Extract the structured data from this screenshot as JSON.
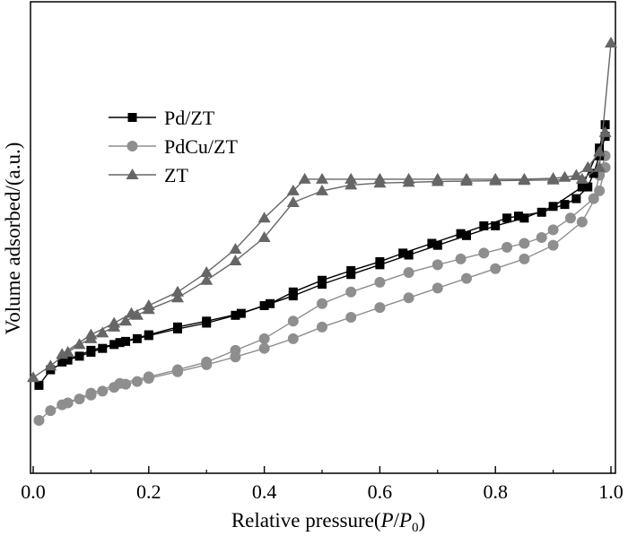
{
  "chart_data": {
    "type": "line",
    "xlabel_main": "Relative pressure(",
    "xlabel_P": "P",
    "xlabel_slash": "/",
    "xlabel_P0": "P",
    "xlabel_sub": "0",
    "xlabel_close": ")",
    "ylabel": "Volume adsorbed/(a.u.)",
    "xlim": [
      0.0,
      1.0
    ],
    "ylim": [
      0,
      100
    ],
    "x_ticks": [
      "0.0",
      "0.2",
      "0.4",
      "0.6",
      "0.8",
      "1.0"
    ],
    "y_ticks_labeled": false,
    "grid": false,
    "legend_position": "upper-left",
    "series": [
      {
        "name": "Pd/ZT",
        "marker": "square",
        "color": "#000000",
        "adsorption": [
          [
            0.01,
            12
          ],
          [
            0.03,
            16
          ],
          [
            0.06,
            18.5
          ],
          [
            0.08,
            19.5
          ],
          [
            0.1,
            20.5
          ],
          [
            0.12,
            21.5
          ],
          [
            0.14,
            22.5
          ],
          [
            0.16,
            23.3
          ],
          [
            0.18,
            24
          ],
          [
            0.2,
            24.8
          ],
          [
            0.25,
            26.5
          ],
          [
            0.3,
            28
          ],
          [
            0.35,
            30
          ],
          [
            0.4,
            32.5
          ],
          [
            0.45,
            35
          ],
          [
            0.5,
            38
          ],
          [
            0.55,
            40.5
          ],
          [
            0.6,
            43
          ],
          [
            0.65,
            45.5
          ],
          [
            0.7,
            48
          ],
          [
            0.75,
            50.5
          ],
          [
            0.8,
            53
          ],
          [
            0.85,
            55
          ],
          [
            0.9,
            58
          ],
          [
            0.95,
            63
          ],
          [
            0.98,
            73
          ],
          [
            0.99,
            79
          ]
        ],
        "desorption": [
          [
            0.99,
            76
          ],
          [
            0.98,
            71
          ],
          [
            0.97,
            66.5
          ],
          [
            0.96,
            63
          ],
          [
            0.94,
            60
          ],
          [
            0.92,
            58.5
          ],
          [
            0.88,
            56.5
          ],
          [
            0.84,
            55.5
          ],
          [
            0.82,
            55
          ],
          [
            0.78,
            53
          ],
          [
            0.74,
            51
          ],
          [
            0.69,
            48.5
          ],
          [
            0.64,
            46
          ],
          [
            0.6,
            43.8
          ],
          [
            0.55,
            41.5
          ],
          [
            0.5,
            39
          ],
          [
            0.45,
            36
          ],
          [
            0.41,
            33
          ],
          [
            0.36,
            30.5
          ],
          [
            0.3,
            28.5
          ],
          [
            0.25,
            27
          ],
          [
            0.2,
            25
          ],
          [
            0.15,
            23
          ],
          [
            0.1,
            21
          ],
          [
            0.05,
            18
          ]
        ]
      },
      {
        "name": "PdCu/ZT",
        "marker": "circle",
        "color": "#8e8e8e",
        "adsorption": [
          [
            0.01,
            3
          ],
          [
            0.03,
            5.5
          ],
          [
            0.06,
            7.5
          ],
          [
            0.08,
            8.5
          ],
          [
            0.1,
            9.5
          ],
          [
            0.12,
            10.5
          ],
          [
            0.14,
            11.5
          ],
          [
            0.16,
            12.3
          ],
          [
            0.18,
            13
          ],
          [
            0.2,
            13.8
          ],
          [
            0.25,
            15.5
          ],
          [
            0.3,
            17.3
          ],
          [
            0.35,
            19.3
          ],
          [
            0.4,
            21.5
          ],
          [
            0.45,
            24
          ],
          [
            0.5,
            27
          ],
          [
            0.55,
            29.5
          ],
          [
            0.6,
            32
          ],
          [
            0.65,
            34.5
          ],
          [
            0.7,
            37
          ],
          [
            0.75,
            39.5
          ],
          [
            0.8,
            42
          ],
          [
            0.85,
            44.5
          ],
          [
            0.9,
            48
          ],
          [
            0.95,
            54
          ],
          [
            0.98,
            62
          ],
          [
            0.99,
            68
          ]
        ],
        "desorption": [
          [
            0.99,
            71
          ],
          [
            0.98,
            66
          ],
          [
            0.97,
            60
          ],
          [
            0.93,
            55
          ],
          [
            0.9,
            52
          ],
          [
            0.88,
            50
          ],
          [
            0.85,
            48.5
          ],
          [
            0.82,
            47.5
          ],
          [
            0.78,
            46
          ],
          [
            0.74,
            44.5
          ],
          [
            0.7,
            43
          ],
          [
            0.65,
            41
          ],
          [
            0.6,
            38.5
          ],
          [
            0.55,
            36
          ],
          [
            0.5,
            33
          ],
          [
            0.45,
            28.5
          ],
          [
            0.4,
            24
          ],
          [
            0.35,
            21
          ],
          [
            0.3,
            18
          ],
          [
            0.25,
            16
          ],
          [
            0.2,
            14.2
          ],
          [
            0.15,
            12.5
          ],
          [
            0.1,
            10
          ],
          [
            0.05,
            7
          ]
        ]
      },
      {
        "name": "ZT",
        "marker": "triangle",
        "color": "#666666",
        "adsorption": [
          [
            0.0,
            14
          ],
          [
            0.03,
            17
          ],
          [
            0.06,
            20.5
          ],
          [
            0.08,
            22.5
          ],
          [
            0.1,
            24
          ],
          [
            0.12,
            25.5
          ],
          [
            0.14,
            27
          ],
          [
            0.16,
            28.5
          ],
          [
            0.18,
            30
          ],
          [
            0.2,
            31.5
          ],
          [
            0.25,
            34.5
          ],
          [
            0.3,
            39
          ],
          [
            0.35,
            44
          ],
          [
            0.4,
            50
          ],
          [
            0.45,
            59
          ],
          [
            0.5,
            62
          ],
          [
            0.55,
            63.5
          ],
          [
            0.6,
            64
          ],
          [
            0.65,
            64.2
          ],
          [
            0.7,
            64.4
          ],
          [
            0.75,
            64.5
          ],
          [
            0.8,
            64.6
          ],
          [
            0.85,
            64.7
          ],
          [
            0.9,
            64.8
          ],
          [
            0.95,
            65
          ],
          [
            0.98,
            68
          ],
          [
            1.0,
            100
          ]
        ],
        "desorption": [
          [
            0.99,
            77
          ],
          [
            0.98,
            72
          ],
          [
            0.96,
            68
          ],
          [
            0.94,
            66
          ],
          [
            0.92,
            65.5
          ],
          [
            0.9,
            65.2
          ],
          [
            0.85,
            65
          ],
          [
            0.8,
            65
          ],
          [
            0.75,
            65
          ],
          [
            0.7,
            65
          ],
          [
            0.65,
            65
          ],
          [
            0.6,
            65
          ],
          [
            0.55,
            65
          ],
          [
            0.5,
            65
          ],
          [
            0.47,
            65
          ],
          [
            0.45,
            62
          ],
          [
            0.4,
            55
          ],
          [
            0.35,
            47
          ],
          [
            0.3,
            41
          ],
          [
            0.25,
            36
          ],
          [
            0.2,
            32.5
          ],
          [
            0.17,
            30.5
          ],
          [
            0.14,
            28
          ],
          [
            0.1,
            25
          ],
          [
            0.05,
            20
          ]
        ]
      }
    ]
  }
}
